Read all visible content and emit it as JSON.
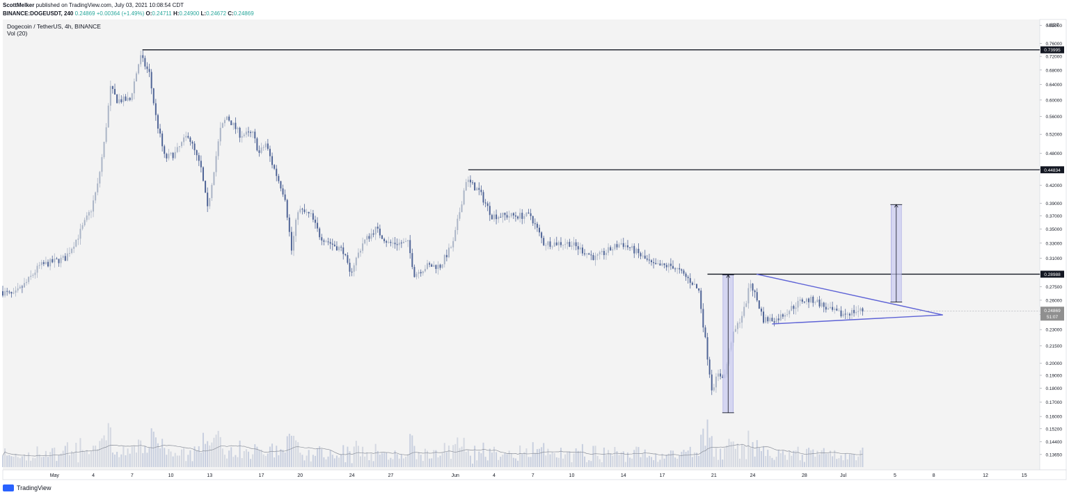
{
  "header": {
    "publisher_user": "ScottMelker",
    "publisher_text": "published on TradingView.com, July 03, 2021 10:08:54 CDT",
    "symbol_line": "BINANCE:DOGEUSDT, 240",
    "last": "0.24869",
    "change": "+0.00364 (+1.49%)",
    "o_label": "O:",
    "o": "0.24711",
    "h_label": "H:",
    "h": "0.24900",
    "l_label": "L:",
    "l": "0.24672",
    "c_label": "C:",
    "c": "0.24869"
  },
  "chart_data": {
    "type": "candlestick",
    "title": "Dogecoin / TetherUS, 4h, BINANCE",
    "indicator": "Vol (20)",
    "currency": "USDT",
    "y_scale": "log",
    "ylim": [
      0.128,
      0.84
    ],
    "price_ticks": [
      "0.82000",
      "0.76000",
      "0.72000",
      "0.68000",
      "0.64000",
      "0.60000",
      "0.56000",
      "0.52000",
      "0.48000",
      "0.45000",
      "0.42000",
      "0.39000",
      "0.37000",
      "0.35000",
      "0.33000",
      "0.31000",
      "0.29000",
      "0.27500",
      "0.26000",
      "0.24500",
      "0.23000",
      "0.21500",
      "0.20000",
      "0.19000",
      "0.18000",
      "0.17000",
      "0.16000",
      "0.15200",
      "0.14400",
      "0.13650"
    ],
    "x_ticks": [
      "May",
      "4",
      "7",
      "10",
      "13",
      "17",
      "20",
      "24",
      "27",
      "Jun",
      "4",
      "7",
      "10",
      "14",
      "17",
      "21",
      "24",
      "28",
      "Jul",
      "5",
      "8",
      "12",
      "15"
    ],
    "x_tick_days": [
      0,
      3,
      6,
      9,
      12,
      16,
      19,
      23,
      26,
      31,
      34,
      37,
      40,
      44,
      47,
      51,
      54,
      58,
      61,
      65,
      68,
      72,
      75
    ],
    "x_range_days": [
      -4,
      76.2
    ],
    "price_path": [
      [
        -4,
        0.27
      ],
      [
        -3,
        0.265
      ],
      [
        -2,
        0.28
      ],
      [
        -1,
        0.3
      ],
      [
        1,
        0.31
      ],
      [
        2,
        0.34
      ],
      [
        3,
        0.38
      ],
      [
        3.5,
        0.42
      ],
      [
        4,
        0.5
      ],
      [
        4.5,
        0.63
      ],
      [
        5,
        0.6
      ],
      [
        6,
        0.6
      ],
      [
        6.8,
        0.72
      ],
      [
        7.5,
        0.67
      ],
      [
        8,
        0.56
      ],
      [
        8.7,
        0.47
      ],
      [
        9.5,
        0.48
      ],
      [
        10.5,
        0.52
      ],
      [
        11.5,
        0.45
      ],
      [
        12,
        0.38
      ],
      [
        12.5,
        0.45
      ],
      [
        13,
        0.53
      ],
      [
        13.5,
        0.56
      ],
      [
        14.5,
        0.52
      ],
      [
        15.5,
        0.52
      ],
      [
        16,
        0.48
      ],
      [
        16.5,
        0.5
      ],
      [
        17,
        0.46
      ],
      [
        18,
        0.4
      ],
      [
        18.5,
        0.32
      ],
      [
        19,
        0.38
      ],
      [
        20,
        0.37
      ],
      [
        20.7,
        0.34
      ],
      [
        21.5,
        0.33
      ],
      [
        22.5,
        0.32
      ],
      [
        23,
        0.29
      ],
      [
        24,
        0.33
      ],
      [
        25,
        0.35
      ],
      [
        26,
        0.33
      ],
      [
        27.5,
        0.33
      ],
      [
        28,
        0.29
      ],
      [
        29,
        0.3
      ],
      [
        30,
        0.3
      ],
      [
        31,
        0.33
      ],
      [
        32,
        0.43
      ],
      [
        33,
        0.41
      ],
      [
        34,
        0.37
      ],
      [
        35,
        0.37
      ],
      [
        36,
        0.37
      ],
      [
        37,
        0.37
      ],
      [
        38,
        0.33
      ],
      [
        39,
        0.33
      ],
      [
        40,
        0.33
      ],
      [
        41,
        0.32
      ],
      [
        42,
        0.31
      ],
      [
        44,
        0.33
      ],
      [
        45,
        0.32
      ],
      [
        46.5,
        0.3
      ],
      [
        48,
        0.3
      ],
      [
        49.5,
        0.28
      ],
      [
        50,
        0.27
      ],
      [
        50.5,
        0.22
      ],
      [
        51,
        0.18
      ],
      [
        51.5,
        0.19
      ],
      [
        52,
        0.19
      ],
      [
        52.5,
        0.22
      ],
      [
        53.5,
        0.25
      ],
      [
        54,
        0.28
      ],
      [
        54.5,
        0.26
      ],
      [
        55,
        0.24
      ],
      [
        56,
        0.24
      ],
      [
        57,
        0.25
      ],
      [
        58,
        0.26
      ],
      [
        59,
        0.26
      ],
      [
        60,
        0.25
      ],
      [
        61,
        0.245
      ],
      [
        62,
        0.248
      ],
      [
        62.5,
        0.249
      ]
    ],
    "horizontal_levels": [
      {
        "price": 0.73995,
        "label": "0.73995",
        "from_day": 6.8
      },
      {
        "price": 0.44834,
        "label": "0.44834",
        "from_day": 32.0
      },
      {
        "price": 0.28988,
        "label": "0.28988",
        "from_day": 50.5
      }
    ],
    "triangle": {
      "upper": [
        [
          54.3,
          0.2899
        ],
        [
          64.9,
          0.258
        ]
      ],
      "lower": [
        [
          55.5,
          0.2355
        ],
        [
          64.9,
          0.2445
        ]
      ],
      "apex": [
        68.7,
        0.2445
      ]
    },
    "measured_moves": [
      {
        "from_day": 51.7,
        "to_day": 52.5,
        "low": 0.1625,
        "high": 0.289
      },
      {
        "from_day": 64.7,
        "to_day": 65.5,
        "low": 0.258,
        "high": 0.3877
      }
    ],
    "current_price": {
      "value": "0.24869",
      "countdown": "51:07"
    },
    "volume_ma_visible": true,
    "grid": false
  },
  "footer": {
    "brand": "TradingView"
  },
  "colors": {
    "candle": "#7d8da8",
    "up": "#aab4c6",
    "down": "#4f6496",
    "background": "#f3f3f3",
    "trend": "#5d62d6",
    "move_fill": "#c8c9ef"
  }
}
